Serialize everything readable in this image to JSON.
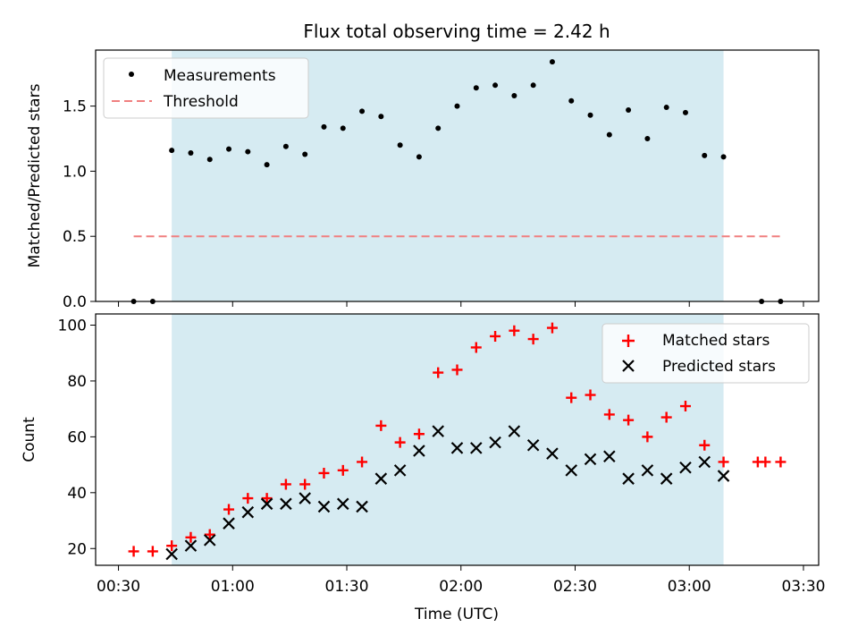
{
  "title": "Flux total observing time = 2.42 h",
  "chart_data": [
    {
      "type": "scatter",
      "panel": "top",
      "title": "Flux total observing time = 2.42 h",
      "xlabel": "",
      "ylabel": "Matched/Predicted stars",
      "xlim": [
        "00:24",
        "03:34"
      ],
      "ylim": [
        0,
        1.93
      ],
      "yticks": [
        "0.0",
        "0.5",
        "1.0",
        "1.5"
      ],
      "shaded_interval": [
        "00:44",
        "03:09"
      ],
      "shade_color": "#add8e6",
      "threshold": {
        "name": "Threshold",
        "value": 0.5,
        "x_range": [
          "00:34",
          "03:24"
        ],
        "color": "#f08080"
      },
      "legend_position": "upper-left",
      "series": [
        {
          "name": "Measurements",
          "color": "#000000",
          "x": [
            "00:34",
            "00:39",
            "00:44",
            "00:49",
            "00:54",
            "00:59",
            "01:04",
            "01:09",
            "01:14",
            "01:19",
            "01:24",
            "01:29",
            "01:34",
            "01:39",
            "01:44",
            "01:49",
            "01:54",
            "01:59",
            "02:04",
            "02:09",
            "02:14",
            "02:19",
            "02:24",
            "02:29",
            "02:34",
            "02:39",
            "02:44",
            "02:49",
            "02:54",
            "02:59",
            "03:04",
            "03:09",
            "03:19",
            "03:24"
          ],
          "y": [
            0.0,
            0.0,
            1.16,
            1.14,
            1.09,
            1.17,
            1.15,
            1.05,
            1.19,
            1.13,
            1.34,
            1.33,
            1.46,
            1.42,
            1.2,
            1.11,
            1.33,
            1.5,
            1.64,
            1.66,
            1.58,
            1.66,
            1.84,
            1.54,
            1.43,
            1.28,
            1.47,
            1.25,
            1.49,
            1.45,
            1.12,
            1.11,
            0.0,
            0.0
          ]
        }
      ]
    },
    {
      "type": "scatter",
      "panel": "bottom",
      "xlabel": "Time (UTC)",
      "ylabel": "Count",
      "xlim": [
        "00:24",
        "03:34"
      ],
      "ylim": [
        14,
        104
      ],
      "yticks": [
        "20",
        "40",
        "60",
        "80",
        "100"
      ],
      "xticks": [
        "00:30",
        "01:00",
        "01:30",
        "02:00",
        "02:30",
        "03:00",
        "03:30"
      ],
      "shaded_interval": [
        "00:44",
        "03:09"
      ],
      "legend_position": "upper-right",
      "series": [
        {
          "name": "Matched stars",
          "marker": "plus",
          "color": "#ff0000",
          "x": [
            "00:34",
            "00:39",
            "00:44",
            "00:49",
            "00:54",
            "00:59",
            "01:04",
            "01:09",
            "01:14",
            "01:19",
            "01:24",
            "01:29",
            "01:34",
            "01:39",
            "01:44",
            "01:49",
            "01:54",
            "01:59",
            "02:04",
            "02:09",
            "02:14",
            "02:19",
            "02:24",
            "02:29",
            "02:34",
            "02:39",
            "02:44",
            "02:49",
            "02:54",
            "02:59",
            "03:04",
            "03:09",
            "03:18",
            "03:20",
            "03:24"
          ],
          "y": [
            19,
            19,
            21,
            24,
            25,
            34,
            38,
            38,
            43,
            43,
            47,
            48,
            51,
            64,
            58,
            61,
            83,
            84,
            92,
            96,
            98,
            95,
            99,
            74,
            75,
            68,
            66,
            60,
            67,
            71,
            57,
            51,
            51,
            51,
            51
          ]
        },
        {
          "name": "Predicted stars",
          "marker": "x",
          "color": "#000000",
          "x": [
            "00:44",
            "00:49",
            "00:54",
            "00:59",
            "01:04",
            "01:09",
            "01:14",
            "01:19",
            "01:24",
            "01:29",
            "01:34",
            "01:39",
            "01:44",
            "01:49",
            "01:54",
            "01:59",
            "02:04",
            "02:09",
            "02:14",
            "02:19",
            "02:24",
            "02:29",
            "02:34",
            "02:39",
            "02:44",
            "02:49",
            "02:54",
            "02:59",
            "03:04",
            "03:09"
          ],
          "y": [
            18,
            21,
            23,
            29,
            33,
            36,
            36,
            38,
            35,
            36,
            35,
            45,
            48,
            55,
            62,
            56,
            56,
            58,
            62,
            57,
            54,
            48,
            52,
            53,
            45,
            48,
            45,
            49,
            51,
            46
          ]
        }
      ]
    }
  ]
}
